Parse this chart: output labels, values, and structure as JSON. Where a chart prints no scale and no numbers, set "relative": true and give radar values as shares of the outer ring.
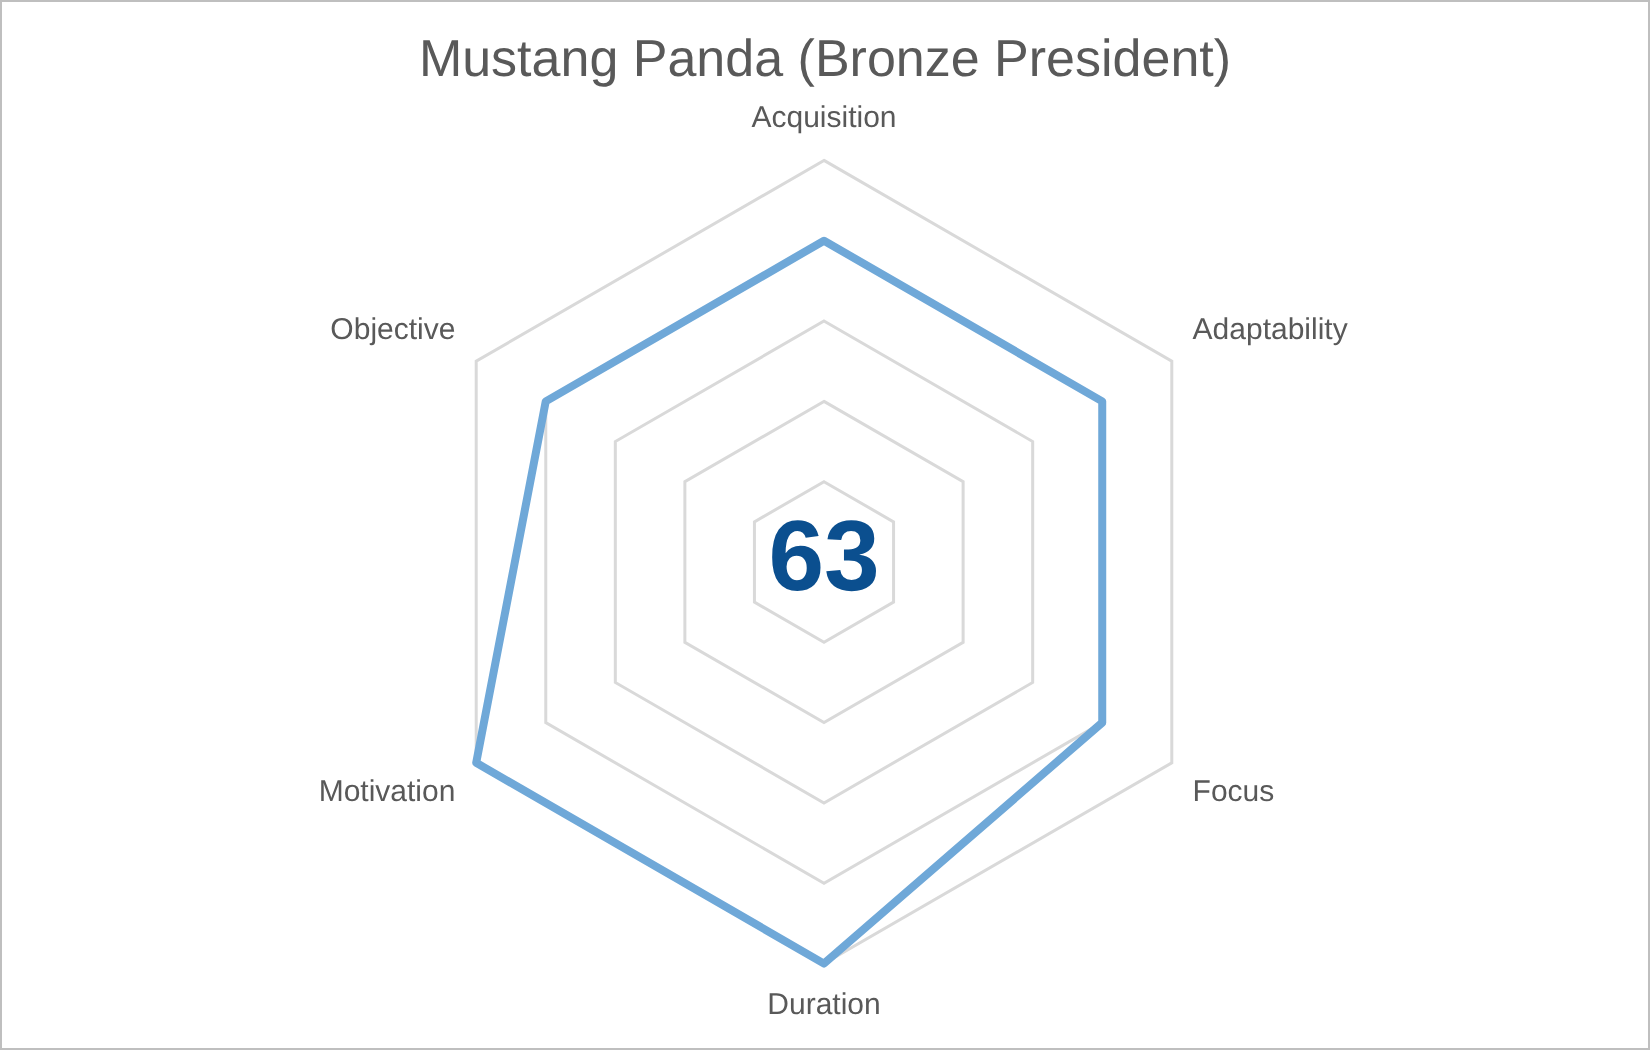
{
  "chart_data": {
    "type": "radar",
    "title": "Mustang Panda (Bronze President)",
    "categories": [
      "Acquisition",
      "Adaptability",
      "Focus",
      "Duration",
      "Motivation",
      "Objective"
    ],
    "relative": true,
    "series": [
      {
        "color": "#6fa8d8",
        "values": [
          0.8,
          0.8,
          0.8,
          1,
          1,
          0.8
        ]
      }
    ],
    "annotations": [
      "63"
    ],
    "grid": true,
    "legend": false,
    "marker": "none",
    "line_style": "solid"
  }
}
